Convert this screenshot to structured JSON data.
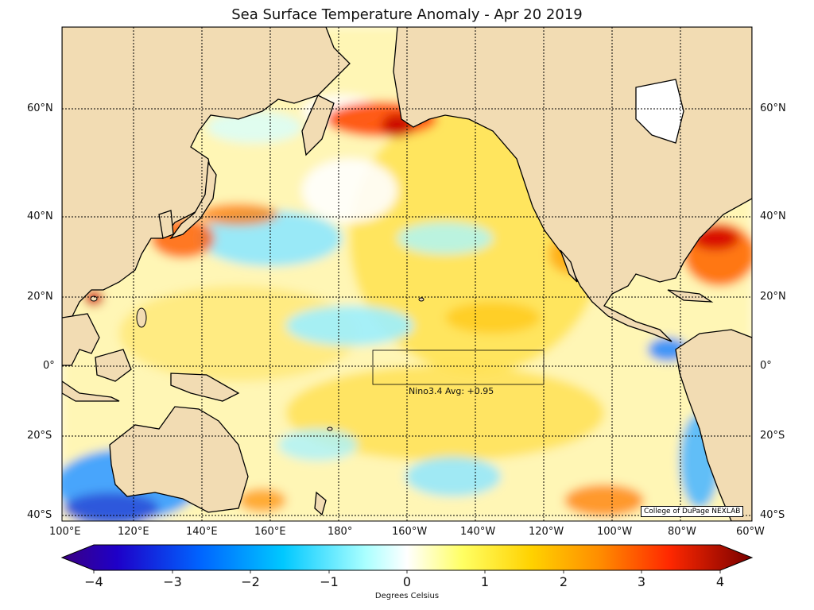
{
  "map": {
    "title": "Sea Surface Temperature Anomaly - Apr 20 2019",
    "region": "Pacific Ocean",
    "date": "Apr 20 2019",
    "lat_labels": [
      "60°N",
      "40°N",
      "20°N",
      "0°",
      "20°S",
      "40°S"
    ],
    "lon_labels": [
      "100°E",
      "120°E",
      "140°E",
      "160°E",
      "180°",
      "160°W",
      "140°W",
      "120°W",
      "100°W",
      "80°W",
      "60°W"
    ],
    "nino_label": "Nino3.4 Avg: +0.95",
    "credit": "College of DuPage NEXLAB",
    "land_color": "#f2dcb3",
    "ocean_base_color": "#ffffff"
  },
  "colorbar": {
    "units": "Degrees Celsius",
    "ticks": [
      "−4",
      "−3",
      "−2",
      "−1",
      "0",
      "1",
      "2",
      "3",
      "4"
    ],
    "colors": [
      "#3b0082",
      "#0000c8",
      "#0064ff",
      "#00c8ff",
      "#b4ffff",
      "#ffffff",
      "#ffff64",
      "#ffd200",
      "#ff8c00",
      "#ff2800",
      "#b40000",
      "#780000"
    ]
  }
}
